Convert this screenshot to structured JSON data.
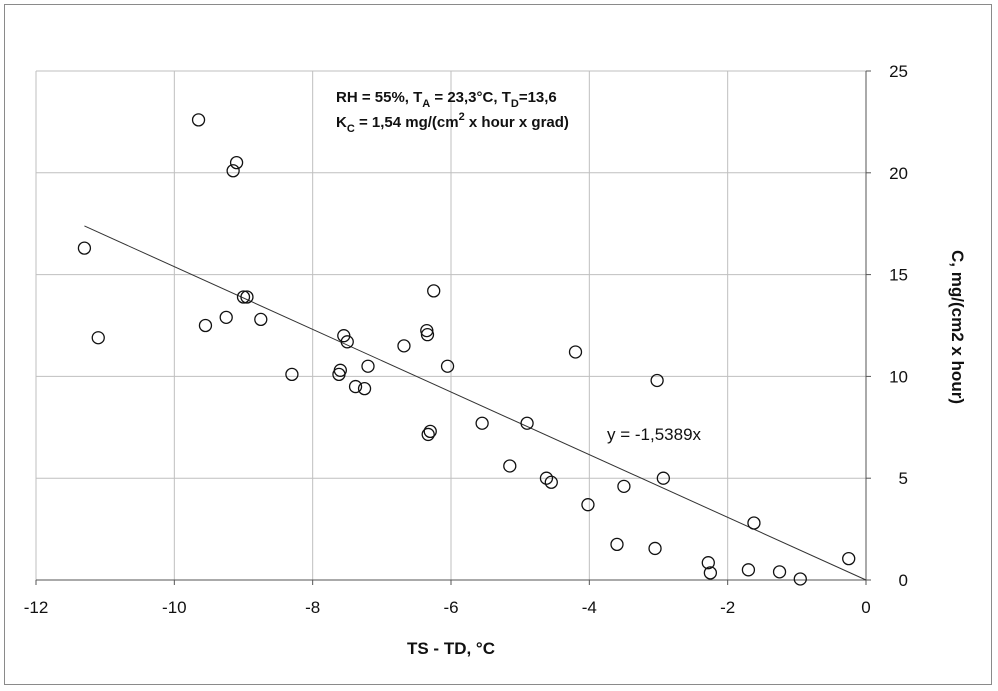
{
  "chart_data": {
    "type": "scatter",
    "xlabel": "TS - TD, °C",
    "ylabel": "C, mg/(cm2 x hour)",
    "xlim": [
      -12,
      0
    ],
    "ylim": [
      0,
      25
    ],
    "x_ticks": [
      -12,
      -10,
      -8,
      -6,
      -4,
      -2,
      0
    ],
    "y_ticks": [
      0,
      5,
      10,
      15,
      20,
      25
    ],
    "x_tick_labels": [
      "-12",
      "-10",
      "-8",
      "-6",
      "-4",
      "-2",
      "0"
    ],
    "y_tick_labels": [
      "0",
      "5",
      "10",
      "15",
      "20",
      "25"
    ],
    "grid": true,
    "y_axis_side": "right",
    "marker": "open-circle",
    "colors": {
      "marker": "#111111",
      "grid": "#bfbfbf",
      "trendline": "#333333"
    },
    "points": [
      {
        "x": -11.3,
        "y": 16.3
      },
      {
        "x": -11.1,
        "y": 11.9
      },
      {
        "x": -9.65,
        "y": 22.6
      },
      {
        "x": -9.55,
        "y": 12.5
      },
      {
        "x": -9.25,
        "y": 12.9
      },
      {
        "x": -9.15,
        "y": 20.1
      },
      {
        "x": -9.1,
        "y": 20.5
      },
      {
        "x": -9.0,
        "y": 13.9
      },
      {
        "x": -8.95,
        "y": 13.9
      },
      {
        "x": -8.75,
        "y": 12.8
      },
      {
        "x": -8.3,
        "y": 10.1
      },
      {
        "x": -7.62,
        "y": 10.1
      },
      {
        "x": -7.6,
        "y": 10.3
      },
      {
        "x": -7.55,
        "y": 12.0
      },
      {
        "x": -7.5,
        "y": 11.7
      },
      {
        "x": -7.38,
        "y": 9.5
      },
      {
        "x": -7.25,
        "y": 9.4
      },
      {
        "x": -7.2,
        "y": 10.5
      },
      {
        "x": -6.68,
        "y": 11.5
      },
      {
        "x": -6.35,
        "y": 12.25
      },
      {
        "x": -6.34,
        "y": 12.05
      },
      {
        "x": -6.33,
        "y": 7.15
      },
      {
        "x": -6.3,
        "y": 7.3
      },
      {
        "x": -6.25,
        "y": 14.2
      },
      {
        "x": -6.05,
        "y": 10.5
      },
      {
        "x": -5.55,
        "y": 7.7
      },
      {
        "x": -5.15,
        "y": 5.6
      },
      {
        "x": -4.9,
        "y": 7.7
      },
      {
        "x": -4.62,
        "y": 5.0
      },
      {
        "x": -4.55,
        "y": 4.8
      },
      {
        "x": -4.2,
        "y": 11.2
      },
      {
        "x": -4.02,
        "y": 3.7
      },
      {
        "x": -3.6,
        "y": 1.75
      },
      {
        "x": -3.5,
        "y": 4.6
      },
      {
        "x": -3.05,
        "y": 1.55
      },
      {
        "x": -3.02,
        "y": 9.8
      },
      {
        "x": -2.93,
        "y": 5.0
      },
      {
        "x": -2.28,
        "y": 0.85
      },
      {
        "x": -2.25,
        "y": 0.35
      },
      {
        "x": -1.7,
        "y": 0.5
      },
      {
        "x": -1.62,
        "y": 2.8
      },
      {
        "x": -1.25,
        "y": 0.4
      },
      {
        "x": -0.95,
        "y": 0.05
      },
      {
        "x": -0.25,
        "y": 1.05
      }
    ],
    "trendline": {
      "slope": -1.5389,
      "intercept": 0,
      "x_range": [
        -11.3,
        0
      ],
      "label": "y = -1,5389x"
    },
    "annotation": {
      "line1": {
        "rh": "RH = 55%, T",
        "ta_sub": "A",
        "ta_val": " = 23,3°C, T",
        "td_sub": "D",
        "td_val": "=13,6"
      },
      "line2": {
        "k": "K",
        "k_sub": "C",
        "k_val": " = 1,54 mg/(cm",
        "sup": "2",
        "rest": " x hour x grad)"
      }
    }
  }
}
